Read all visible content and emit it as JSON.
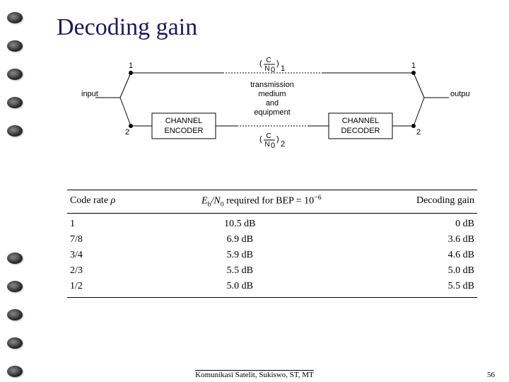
{
  "title": "Decoding gain",
  "diagram": {
    "labels": {
      "input": "input",
      "output": "output",
      "encoder_line1": "CHANNEL",
      "encoder_line2": "ENCODER",
      "decoder_line1": "CHANNEL",
      "decoder_line2": "DECODER",
      "medium_line1": "transmission",
      "medium_line2": "medium",
      "medium_line3": "and",
      "medium_line4": "equipment",
      "port1": "1",
      "port2": "2",
      "frac_num": "C",
      "frac_den": "N",
      "frac_den_sub": "0",
      "frac_sub1": "1",
      "frac_sub2": "2"
    },
    "colors": {
      "stroke": "#000000",
      "fill": "#000000",
      "bg": "#ffffff"
    }
  },
  "table": {
    "headers": {
      "col1_a": "Code rate ",
      "col1_rho": "ρ",
      "col2_a": "E",
      "col2_b": "b",
      "col2_c": "/N",
      "col2_d": "0",
      "col2_e": " required for BEP = 10",
      "col2_f": "−6",
      "col3": "Decoding gain"
    },
    "rows": [
      {
        "rate": "1",
        "ebn0": "10.5 dB",
        "gain": "0 dB"
      },
      {
        "rate": "7/8",
        "ebn0": "6.9 dB",
        "gain": "3.6 dB"
      },
      {
        "rate": "3/4",
        "ebn0": "5.9 dB",
        "gain": "4.6 dB"
      },
      {
        "rate": "2/3",
        "ebn0": "5.5 dB",
        "gain": "5.0 dB"
      },
      {
        "rate": "1/2",
        "ebn0": "5.0 dB",
        "gain": "5.5 dB"
      }
    ]
  },
  "footer": "Komunikasi Satelit, Sukiswo, ST, MT",
  "page_number": "56",
  "hole_positions": [
    25,
    65,
    105,
    145,
    185,
    365,
    405,
    445,
    485,
    525
  ]
}
